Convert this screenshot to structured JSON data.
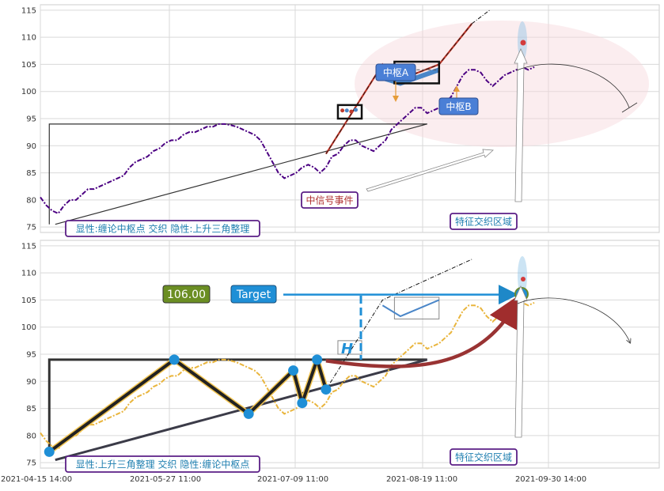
{
  "chart_data": [
    {
      "type": "line",
      "panel": "top",
      "xlim": [
        0,
        208
      ],
      "ylim": [
        74,
        116
      ],
      "yticks": [
        75,
        80,
        85,
        90,
        95,
        100,
        105,
        110,
        115
      ],
      "series": [
        {
          "color": "#4b0082",
          "style": "dash-dot",
          "x": [
            0,
            2,
            4,
            6,
            8,
            10,
            12,
            14,
            16,
            18,
            20,
            22,
            24,
            26,
            28,
            30,
            32,
            34,
            36,
            38,
            40,
            42,
            44,
            46,
            48,
            50,
            52,
            54,
            56,
            58,
            60,
            62,
            64,
            66,
            68,
            70,
            72,
            74,
            76,
            78,
            80,
            82,
            84,
            86,
            88,
            90,
            92,
            94,
            96,
            98,
            100,
            102,
            104,
            106,
            108,
            110,
            112,
            114,
            116,
            118,
            120,
            122,
            124,
            126,
            128,
            130,
            132,
            134,
            136,
            138,
            140,
            142,
            144,
            146,
            148,
            150,
            152,
            154,
            156,
            158,
            160,
            162,
            164,
            166
          ],
          "values": [
            80.5,
            79,
            78,
            77.5,
            79,
            80,
            80,
            81,
            82,
            82,
            82.5,
            83,
            83.5,
            84,
            84.5,
            86,
            87,
            87.5,
            88,
            89,
            89.5,
            90.5,
            91,
            91,
            92,
            92.5,
            92.5,
            93,
            93.5,
            93.5,
            94,
            94,
            93.8,
            93.5,
            93,
            92.5,
            92,
            91,
            89,
            87,
            85,
            84,
            84.5,
            85,
            86,
            86.5,
            86,
            85,
            86,
            88,
            88.5,
            90,
            91,
            91,
            90,
            89.5,
            89,
            90,
            91,
            93,
            94,
            95,
            96,
            97,
            97,
            96,
            96.5,
            97,
            98,
            99,
            101,
            103,
            104,
            104,
            103.5,
            102,
            101,
            102,
            103,
            103.5,
            104,
            104.5,
            104,
            104.5
          ]
        }
      ],
      "overlays": {
        "triangle_top": 94,
        "triangle_left_x": 3,
        "triangle_apex_x": 130,
        "lower_trendline": {
          "x": [
            5,
            130
          ],
          "y": [
            75.5,
            94
          ]
        },
        "zhongshu_a": {
          "x": [
            100,
            108
          ],
          "y": [
            95,
            97.5
          ]
        },
        "zhongshu_b": {
          "x": [
            119,
            134
          ],
          "y": [
            101.5,
            105.5
          ]
        },
        "uptrend": {
          "x": [
            96,
            115,
            120,
            134,
            145
          ],
          "y": [
            88.5,
            105,
            102,
            105,
            112.5
          ]
        },
        "highlight_region": "ellipse around 100–116 on the right",
        "arc_curve": "downward arc from ~147,104.8 to ~190,97"
      },
      "annotations": [
        {
          "label": "中枢A"
        },
        {
          "label": "中枢B"
        },
        {
          "label": "中信号事件"
        },
        {
          "label": "特征交织区域"
        },
        {
          "label": "显性:缠论中枢点 交织 隐性:上升三角整理"
        }
      ]
    },
    {
      "type": "line",
      "panel": "bottom",
      "xlim": [
        0,
        208
      ],
      "ylim": [
        74,
        116
      ],
      "yticks": [
        75,
        80,
        85,
        90,
        95,
        100,
        105,
        110,
        115
      ],
      "xticks": [
        "2021-04-15 14:00",
        "2021-05-27 11:00",
        "2021-07-09 11:00",
        "2021-08-19 11:00",
        "2021-09-30 14:00"
      ],
      "series": [
        {
          "color": "#e9b53d",
          "style": "dash-dot",
          "x": [
            0,
            2,
            4,
            6,
            8,
            10,
            12,
            14,
            16,
            18,
            20,
            22,
            24,
            26,
            28,
            30,
            32,
            34,
            36,
            38,
            40,
            42,
            44,
            46,
            48,
            50,
            52,
            54,
            56,
            58,
            60,
            62,
            64,
            66,
            68,
            70,
            72,
            74,
            76,
            78,
            80,
            82,
            84,
            86,
            88,
            90,
            92,
            94,
            96,
            98,
            100,
            102,
            104,
            106,
            108,
            110,
            112,
            114,
            116,
            118,
            120,
            122,
            124,
            126,
            128,
            130,
            132,
            134,
            136,
            138,
            140,
            142,
            144,
            146,
            148,
            150,
            152,
            154,
            156,
            158,
            160,
            162,
            164,
            166
          ],
          "values": [
            80.5,
            79,
            78,
            77.5,
            79,
            80,
            80,
            81,
            82,
            82,
            82.5,
            83,
            83.5,
            84,
            84.5,
            86,
            87,
            87.5,
            88,
            89,
            89.5,
            90.5,
            91,
            91,
            92,
            92.5,
            92.5,
            93,
            93.5,
            93.5,
            94,
            94,
            93.8,
            93.5,
            93,
            92.5,
            92,
            91,
            89,
            87,
            85,
            84,
            84.5,
            85,
            86,
            86.5,
            86,
            85,
            86,
            88,
            88.5,
            90,
            91,
            91,
            90,
            89.5,
            89,
            90,
            91,
            93,
            94,
            95,
            96,
            97,
            97,
            96,
            96.5,
            97,
            98,
            99,
            101,
            103,
            104,
            104,
            103.5,
            102,
            101,
            102,
            103,
            103.5,
            104,
            104.5,
            104,
            104.5
          ]
        }
      ],
      "pattern_points": {
        "x": [
          3,
          45,
          70,
          85,
          88,
          93,
          96
        ],
        "y": [
          77,
          94,
          84,
          92,
          86,
          94,
          88.5
        ]
      },
      "target": {
        "label": "Target",
        "value_label": "106.00",
        "value": 106
      },
      "h_label": "H",
      "annotations": [
        {
          "label": "特征交织区域"
        },
        {
          "label": "显性:上升三角整理 交织 隐性:缠论中枢点"
        }
      ]
    }
  ]
}
